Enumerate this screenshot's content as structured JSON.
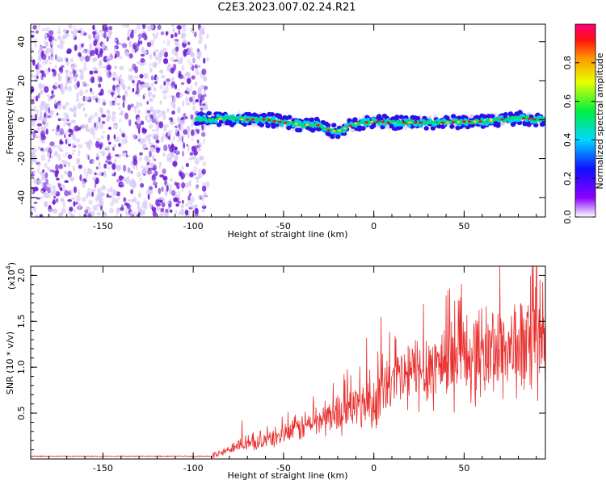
{
  "title": "C2E3.2023.007.02.24.R21",
  "colors": {
    "snr_line": "#e8312f",
    "noise_hi": "#6f1fd6",
    "noise_lo": "#d7c9f5",
    "track_core": "#e8141a"
  },
  "chart_data": [
    {
      "type": "heatmap",
      "title": "",
      "xlabel": "Height of straight line (km)",
      "ylabel": "Frequency (Hz)",
      "xlim": [
        -190,
        95
      ],
      "ylim": [
        -50,
        49
      ],
      "x_ticks": [
        -150,
        -100,
        -50,
        0,
        50
      ],
      "x_tick_labels": [
        "-150",
        "-100",
        "-50",
        "0",
        "50"
      ],
      "y_ticks": [
        -40,
        -20,
        0,
        20,
        40
      ],
      "y_tick_labels": [
        "-40",
        "-20",
        "0",
        "20",
        "40"
      ],
      "noise_region_x": [
        -190,
        -92
      ],
      "track": {
        "x": [
          -100,
          -90,
          -80,
          -70,
          -60,
          -50,
          -40,
          -30,
          -25,
          -20,
          -15,
          -10,
          0,
          10,
          20,
          30,
          40,
          50,
          60,
          70,
          80,
          90,
          95
        ],
        "y": [
          0,
          0.5,
          0.5,
          0,
          0,
          -1.5,
          -2.5,
          -3,
          -5.5,
          -6,
          -4,
          -2,
          -1,
          -1.5,
          -1.5,
          -1.5,
          -1.5,
          -1,
          -1,
          0,
          1,
          0,
          0
        ]
      },
      "colorbar": {
        "label": "Normalized spectral amplitude",
        "range": [
          0,
          1
        ],
        "ticks": [
          0.0,
          0.2,
          0.4,
          0.6,
          0.8
        ],
        "tick_labels": [
          "0.0",
          "0.2",
          "0.4",
          "0.6",
          "0.8"
        ]
      }
    },
    {
      "type": "line",
      "title": "",
      "xlabel": "Height of straight line (km)",
      "ylabel": "SNR (10 * v/v)",
      "y_multiplier_label": "(x10",
      "y_multiplier_exp": "4",
      "y_multiplier_close": ")",
      "xlim": [
        -190,
        95
      ],
      "ylim": [
        0,
        2.1
      ],
      "x_ticks": [
        -150,
        -100,
        -50,
        0,
        50
      ],
      "x_tick_labels": [
        "-150",
        "-100",
        "-50",
        "0",
        "50"
      ],
      "y_ticks": [
        0.5,
        1.0,
        1.5,
        2.0
      ],
      "y_tick_labels": [
        "0.5",
        "1.0",
        "1.5",
        "2.0"
      ],
      "series": [
        {
          "name": "SNR",
          "x": [
            -190,
            -100,
            -90,
            -85,
            -80,
            -75,
            -70,
            -60,
            -50,
            -40,
            -30,
            -20,
            -10,
            0,
            10,
            20,
            30,
            40,
            50,
            60,
            70,
            80,
            90,
            95
          ],
          "y": [
            0.03,
            0.03,
            0.03,
            0.06,
            0.1,
            0.18,
            0.15,
            0.2,
            0.27,
            0.35,
            0.43,
            0.5,
            0.58,
            0.62,
            0.82,
            0.92,
            1.0,
            1.06,
            1.12,
            1.16,
            1.2,
            1.22,
            1.2,
            1.2
          ],
          "peaks": [
            {
              "x": -73,
              "y": 0.42
            },
            {
              "x": -4,
              "y": 1.32
            },
            {
              "x": 4,
              "y": 1.55
            },
            {
              "x": 40,
              "y": 1.78
            },
            {
              "x": 48,
              "y": 1.76
            },
            {
              "x": 90,
              "y": 2.1
            },
            {
              "x": 92,
              "y": 1.95
            }
          ]
        }
      ]
    }
  ]
}
